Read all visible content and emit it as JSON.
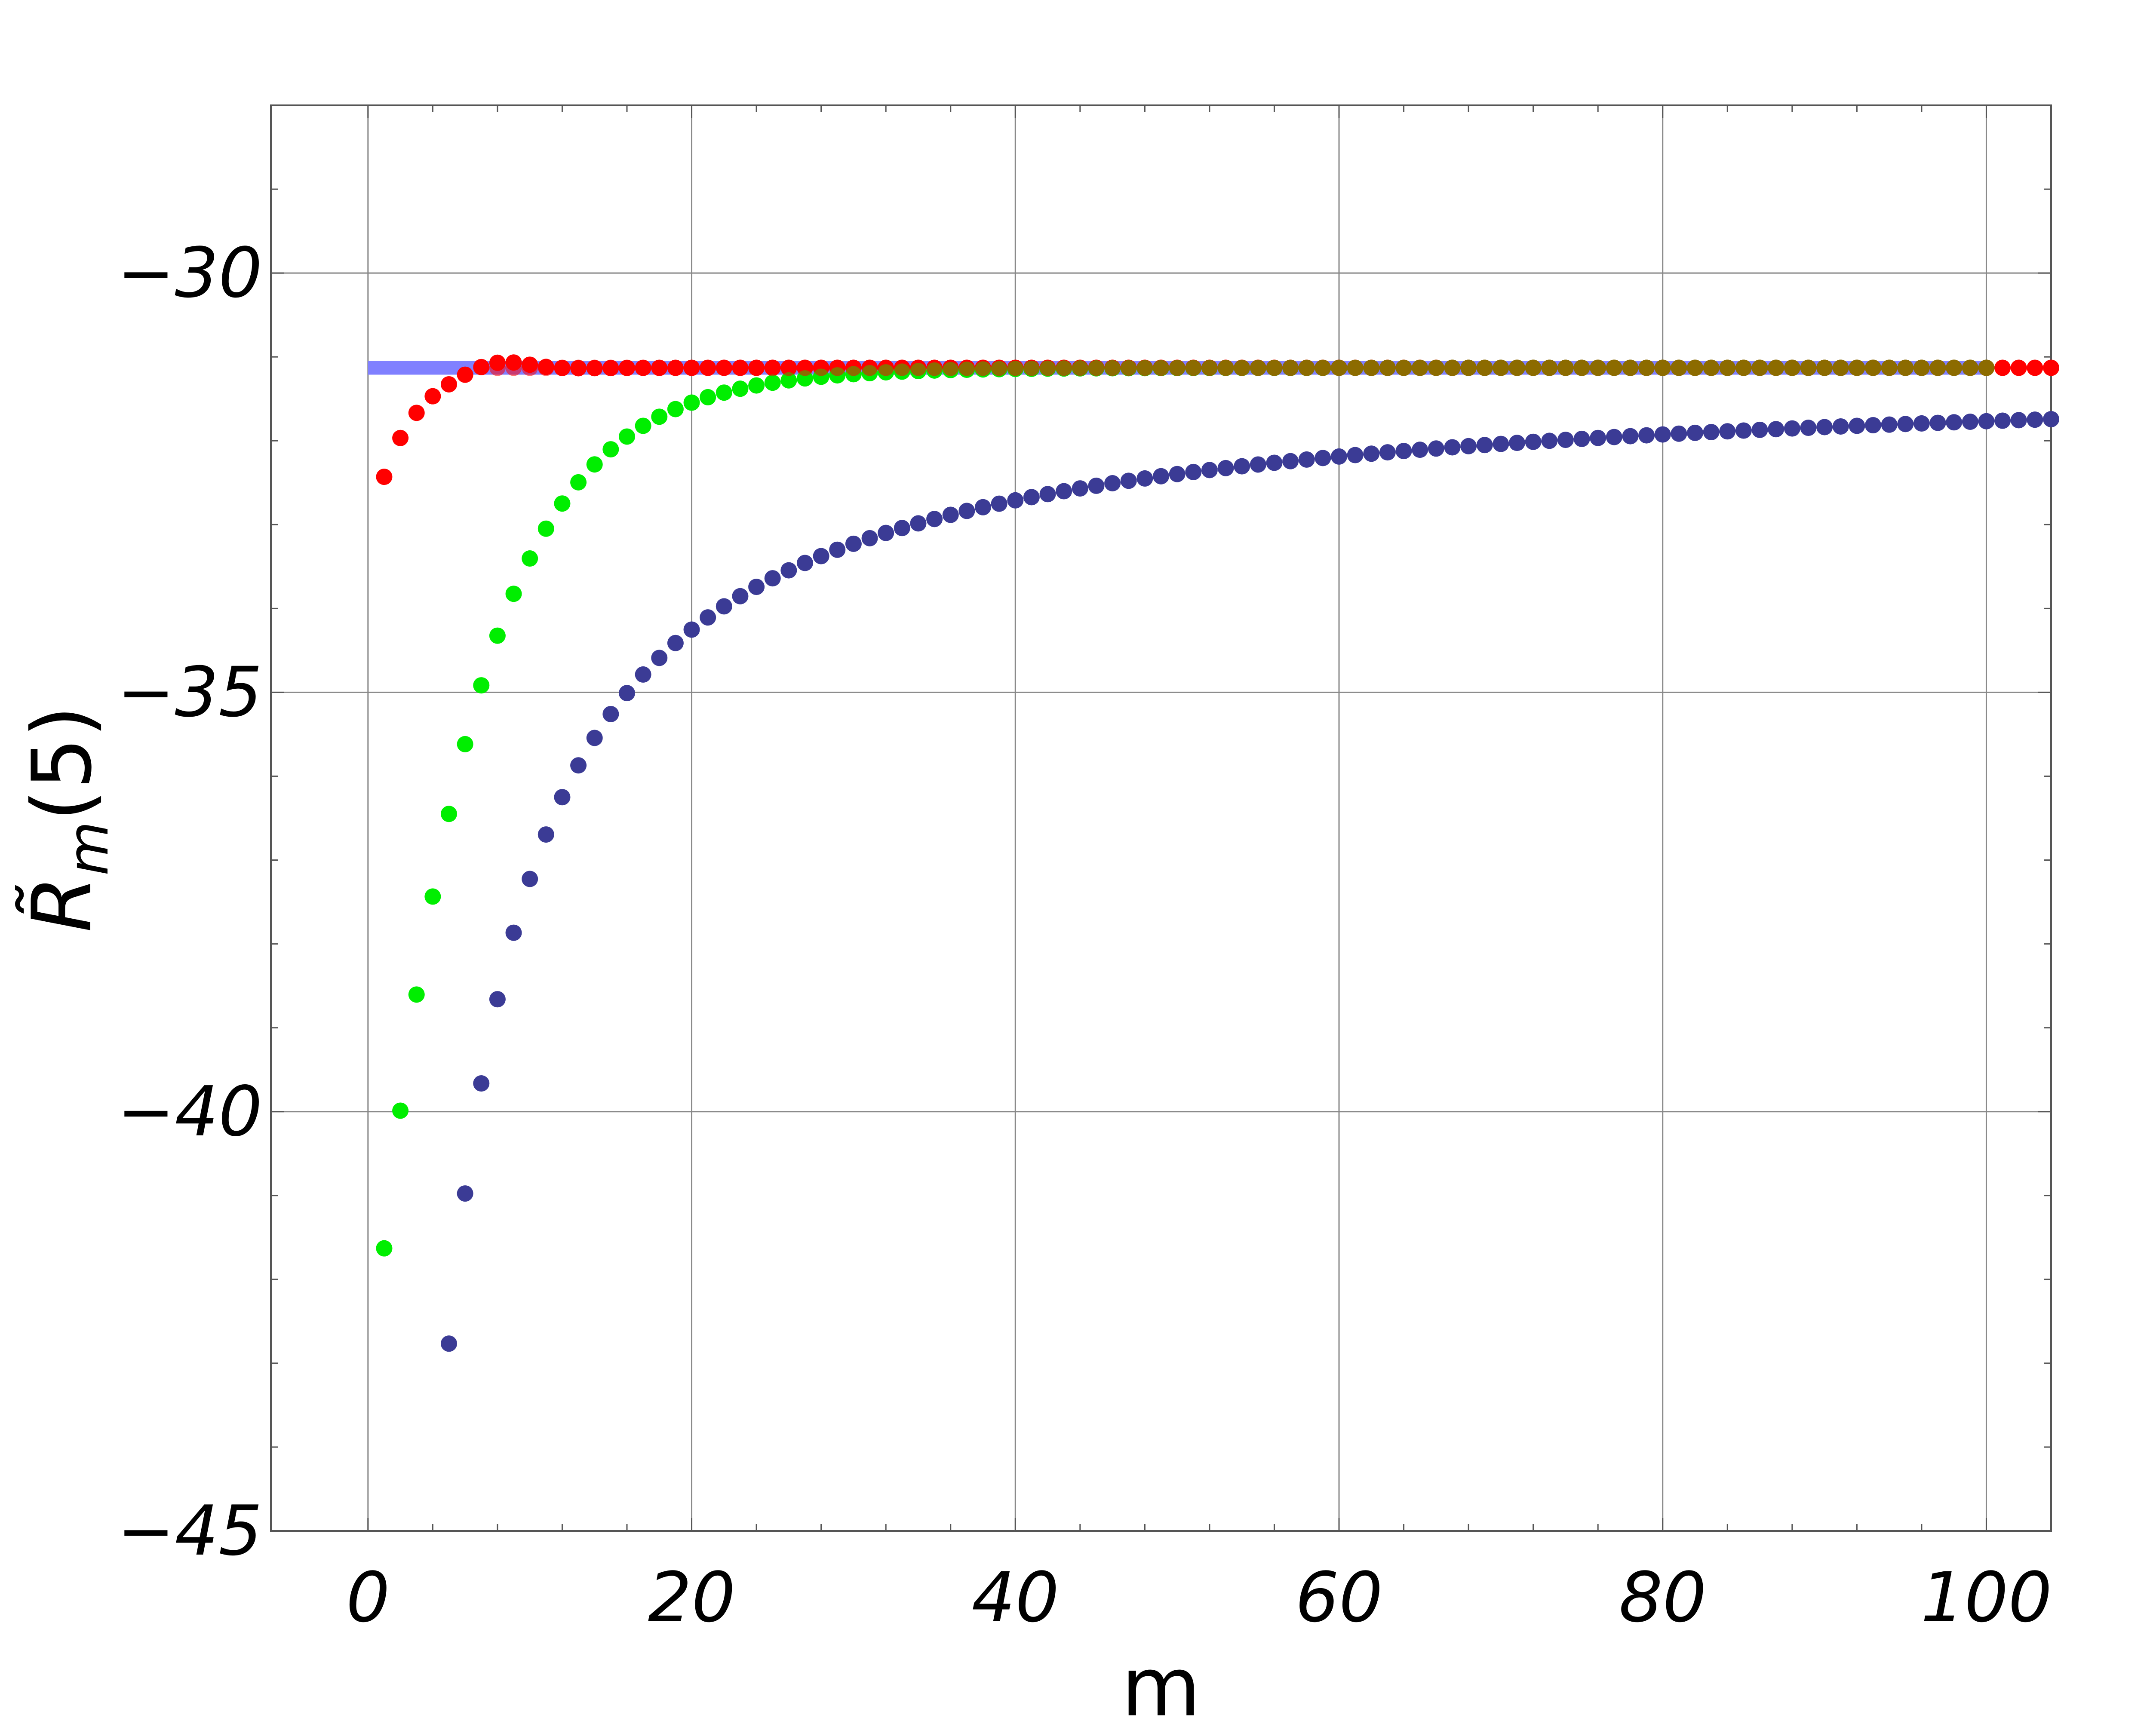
{
  "chart_data": {
    "type": "scatter",
    "title": "",
    "xlabel": "m",
    "ylabel": {
      "base": "R̃",
      "sub": "m",
      "arg": "(5)"
    },
    "xlim": [
      -6,
      104
    ],
    "ylim": [
      -45,
      -28
    ],
    "x_ticks": [
      0,
      20,
      40,
      60,
      80,
      100
    ],
    "y_ticks": [
      -45,
      -40,
      -35,
      -30
    ],
    "grid": true,
    "reference_line": {
      "y": -31.13,
      "x_range": [
        0,
        100
      ],
      "color": "#8080ff"
    },
    "series": [
      {
        "color": "#ff0000",
        "kind": "fast",
        "m_start": 1,
        "m_end": 104,
        "limit": -31.13,
        "amplitude": -1.3,
        "rate": 0.44,
        "overshoot": 0.12
      },
      {
        "color": "#00ee00",
        "kind": "medium",
        "m_start": 1,
        "m_end": 100,
        "limit": -31.13,
        "amplitude": -10.5,
        "rate": 0.17,
        "overshoot": 0
      },
      {
        "color": "#ff0000",
        "kind": "overlay",
        "m_start": 8,
        "m_end": 100,
        "limit": -31.13,
        "amplitude": 0,
        "rate": 0,
        "overshoot": 0
      },
      {
        "color": "#3b3b95",
        "kind": "slow",
        "m_start": 5,
        "m_end": 104,
        "limit": -31.13,
        "coef": -64,
        "offset": 0.5
      }
    ]
  }
}
